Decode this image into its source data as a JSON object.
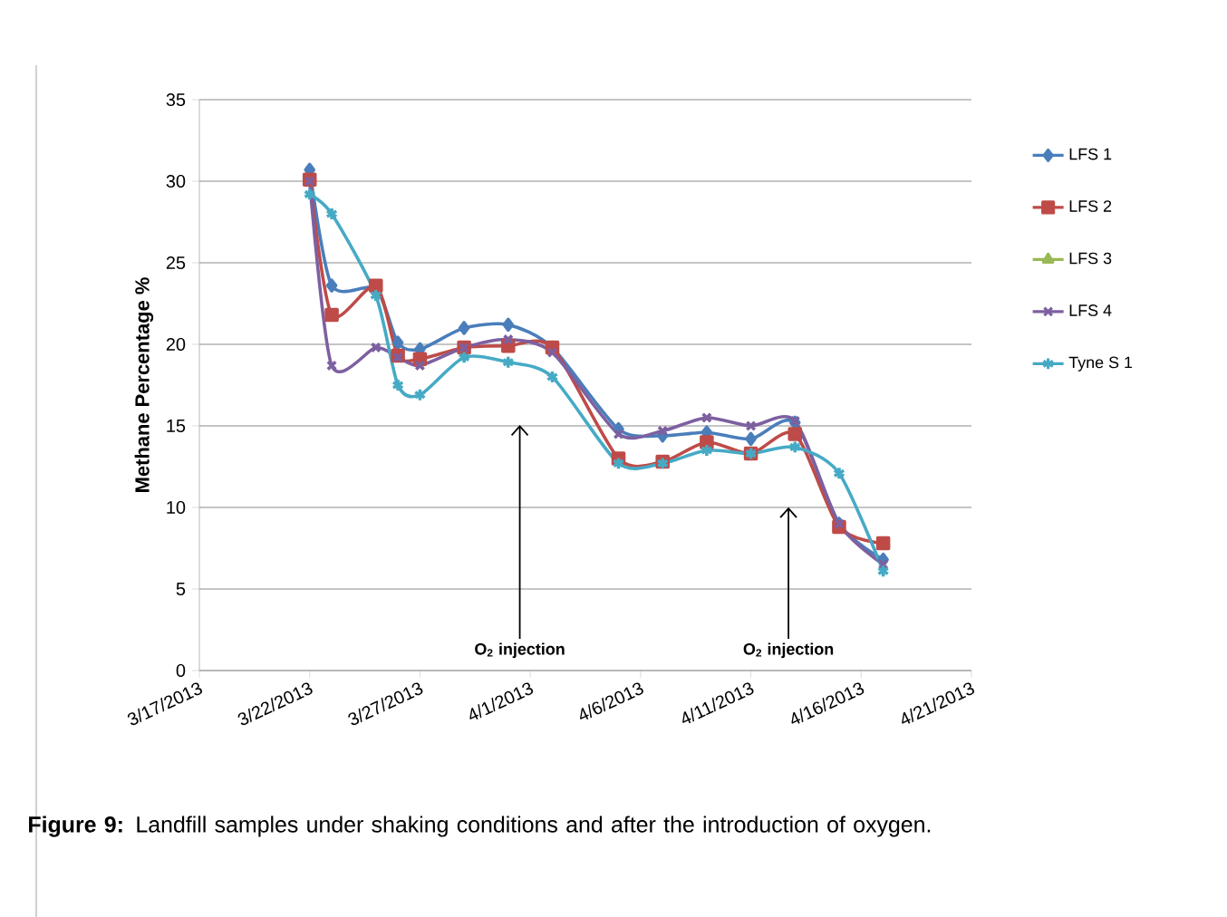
{
  "chart_data": {
    "type": "line",
    "ylabel": "Methane Percentage %",
    "x": [
      "2013-03-22",
      "2013-03-23",
      "2013-03-25",
      "2013-03-26",
      "2013-03-27",
      "2013-03-29",
      "2013-03-31",
      "2013-04-02",
      "2013-04-05",
      "2013-04-07",
      "2013-04-09",
      "2013-04-11",
      "2013-04-13",
      "2013-04-15",
      "2013-04-17"
    ],
    "series": [
      {
        "name": "LFS 1",
        "color": "#4a7ebb",
        "marker": "diamond",
        "values": [
          30.7,
          23.6,
          23.4,
          20.1,
          19.7,
          21.0,
          21.2,
          19.8,
          14.8,
          14.4,
          14.6,
          14.2,
          15.2,
          9.0,
          6.8
        ]
      },
      {
        "name": "LFS 2",
        "color": "#be4b48",
        "marker": "square",
        "values": [
          30.1,
          21.8,
          23.6,
          19.3,
          19.1,
          19.8,
          19.9,
          19.8,
          13.0,
          12.8,
          14.0,
          13.3,
          14.5,
          8.8,
          7.8
        ]
      },
      {
        "name": "LFS 3",
        "color": "#98b954",
        "marker": "triangle",
        "values": [
          null,
          null,
          null,
          null,
          null,
          null,
          null,
          null,
          null,
          null,
          null,
          null,
          null,
          null,
          null
        ]
      },
      {
        "name": "LFS 4",
        "color": "#7d60a0",
        "marker": "cross",
        "values": [
          30.0,
          18.7,
          19.8,
          19.2,
          18.7,
          19.8,
          20.3,
          19.5,
          14.5,
          14.7,
          15.5,
          15.0,
          15.3,
          9.0,
          6.5
        ]
      },
      {
        "name": "Tyne S 1",
        "color": "#46aac5",
        "marker": "cross",
        "values": [
          29.2,
          28.0,
          23.0,
          17.5,
          16.9,
          19.2,
          18.9,
          18.0,
          12.7,
          12.7,
          13.5,
          13.3,
          13.7,
          12.1,
          6.1
        ]
      }
    ],
    "xlim": [
      "2013-03-17",
      "2013-04-21"
    ],
    "xticks": [
      {
        "value": "2013-03-17",
        "label": "3/17/2013"
      },
      {
        "value": "2013-03-22",
        "label": "3/22/2013"
      },
      {
        "value": "2013-03-27",
        "label": "3/27/2013"
      },
      {
        "value": "2013-04-01",
        "label": "4/1/2013"
      },
      {
        "value": "2013-04-06",
        "label": "4/6/2013"
      },
      {
        "value": "2013-04-11",
        "label": "4/11/2013"
      },
      {
        "value": "2013-04-16",
        "label": "4/16/2013"
      },
      {
        "value": "2013-04-21",
        "label": "4/21/2013"
      }
    ],
    "ylim": [
      0,
      35
    ],
    "yticks": [
      0,
      5,
      10,
      15,
      20,
      25,
      30,
      35
    ],
    "grid": "y",
    "legend": "right",
    "annotations": [
      "O$_{2}$ injection",
      "O$_{2}$ injection",
      "**Figure 9:** Landfill samples under shaking conditions and after the introduction of oxygen."
    ]
  }
}
